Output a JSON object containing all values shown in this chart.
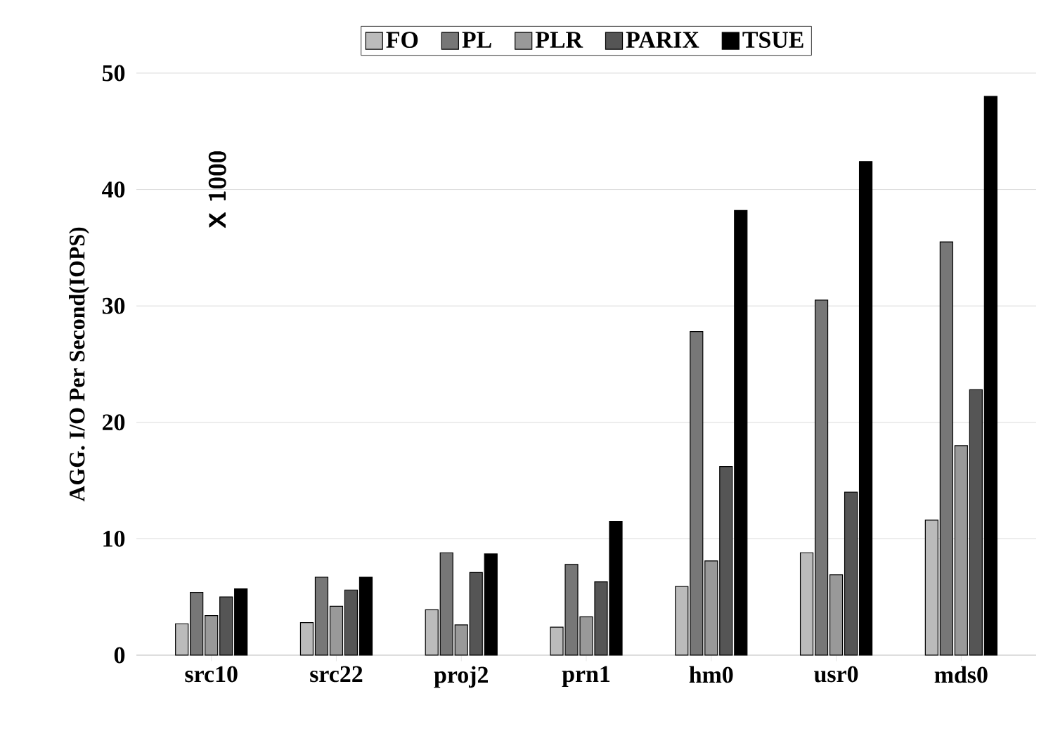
{
  "chart_data": {
    "type": "bar",
    "ylabel": "AGG. I/O Per Second(IOPS)",
    "annotations": [
      "X 1000"
    ],
    "categories": [
      "src10",
      "src22",
      "proj2",
      "prn1",
      "hm0",
      "usr0",
      "mds0"
    ],
    "series": [
      {
        "name": "FO",
        "color": "#bbbbbb",
        "values": [
          2.7,
          2.8,
          3.9,
          2.4,
          5.9,
          8.8,
          11.6
        ]
      },
      {
        "name": "PL",
        "color": "#777777",
        "values": [
          5.4,
          6.7,
          8.8,
          7.8,
          27.8,
          30.5,
          35.5
        ]
      },
      {
        "name": "PLR",
        "color": "#999999",
        "values": [
          3.4,
          4.2,
          2.6,
          3.3,
          8.1,
          6.9,
          18.0
        ]
      },
      {
        "name": "PARIX",
        "color": "#555555",
        "values": [
          5.0,
          5.6,
          7.1,
          6.3,
          16.2,
          14.0,
          22.8
        ]
      },
      {
        "name": "TSUE",
        "color": "#000000",
        "values": [
          5.7,
          6.7,
          8.7,
          11.5,
          38.2,
          42.4,
          48.0
        ]
      }
    ],
    "ylim": [
      0,
      50
    ],
    "yticks": [
      0,
      10,
      20,
      30,
      40,
      50
    ],
    "grid": "y",
    "legend": "top"
  }
}
